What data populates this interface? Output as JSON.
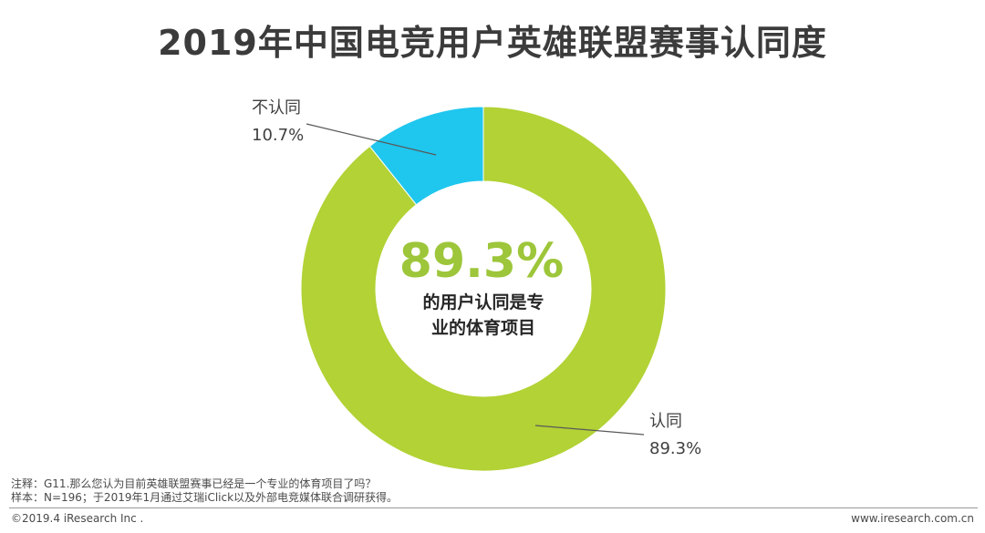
{
  "title": "2019年中国电竞用户英雄联盟赛事认同度",
  "colors": {
    "agree": "#b2d235",
    "disagree": "#1fc6ee",
    "center_value": "#9dc63a",
    "leader_line": "#595959"
  },
  "chart_data": {
    "type": "pie",
    "variant": "donut",
    "slices": [
      {
        "name": "认同",
        "value": 89.3,
        "label": "89.3%",
        "color": "#b2d235"
      },
      {
        "name": "不认同",
        "value": 10.7,
        "label": "10.7%",
        "color": "#1fc6ee"
      }
    ],
    "center": {
      "value": "89.3%",
      "caption_line1": "的用户认同是专",
      "caption_line2": "业的体育项目"
    }
  },
  "labels": {
    "disagree_name": "不认同",
    "disagree_pct": "10.7%",
    "agree_name": "认同",
    "agree_pct": "89.3%"
  },
  "notes": {
    "note": "注释：G11.那么您认为目前英雄联盟赛事已经是一个专业的体育项目了吗？",
    "sample": "样本：N=196；于2019年1月通过艾瑞iClick以及外部电竞媒体联合调研获得。"
  },
  "footer": {
    "copyright": "©2019.4 iResearch Inc .",
    "website": "www.iresearch.com.cn"
  }
}
